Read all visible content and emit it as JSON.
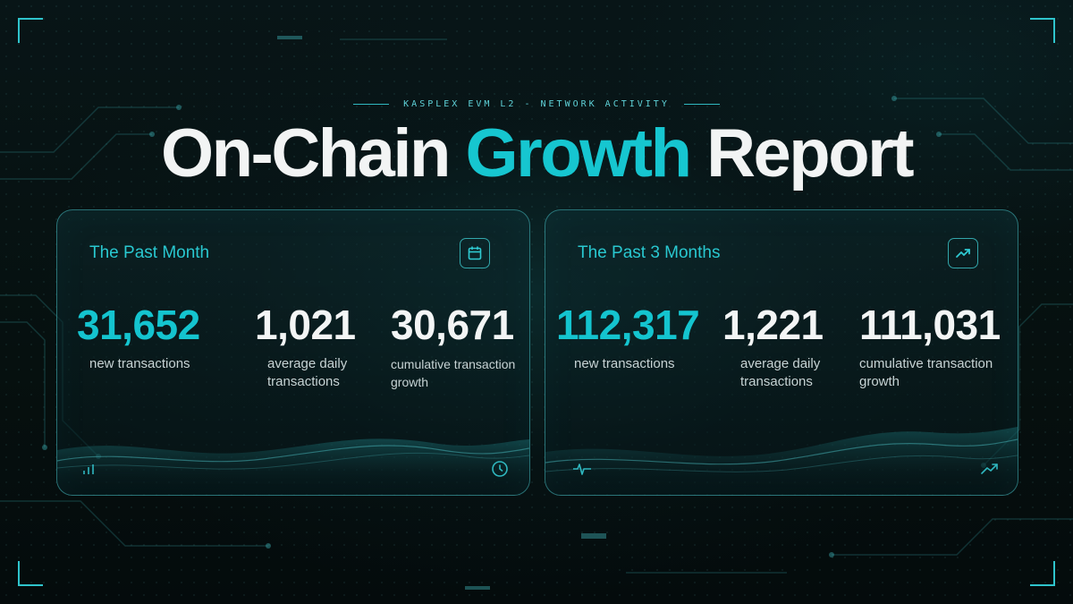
{
  "header": {
    "eyebrow": "KASPLEX EVM L2 - NETWORK ACTIVITY",
    "title_part1": "On-Chain ",
    "title_accent": "Growth",
    "title_part2": " Report"
  },
  "colors": {
    "accent": "#14c4cf",
    "background": "#071214",
    "text": "#f3f5f5"
  },
  "cards": [
    {
      "heading": "The Past Month",
      "header_icon": "calendar-icon",
      "footer_left_icon": "bar-chart-icon",
      "footer_right_icon": "clock-icon",
      "stats": [
        {
          "value": "31,652",
          "label": "new transactions"
        },
        {
          "value": "1,021",
          "label": "average daily\ntransactions"
        },
        {
          "value": "30,671",
          "label": "cumulative transaction\ngrowth"
        }
      ]
    },
    {
      "heading": "The Past 3 Months",
      "header_icon": "trending-up-icon",
      "footer_left_icon": "pulse-icon",
      "footer_right_icon": "trending-up-icon",
      "stats": [
        {
          "value": "112,317",
          "label": "new transactions"
        },
        {
          "value": "1,221",
          "label": "average daily\ntransactions"
        },
        {
          "value": "111,031",
          "label": "cumulative transaction\ngrowth"
        }
      ]
    }
  ]
}
